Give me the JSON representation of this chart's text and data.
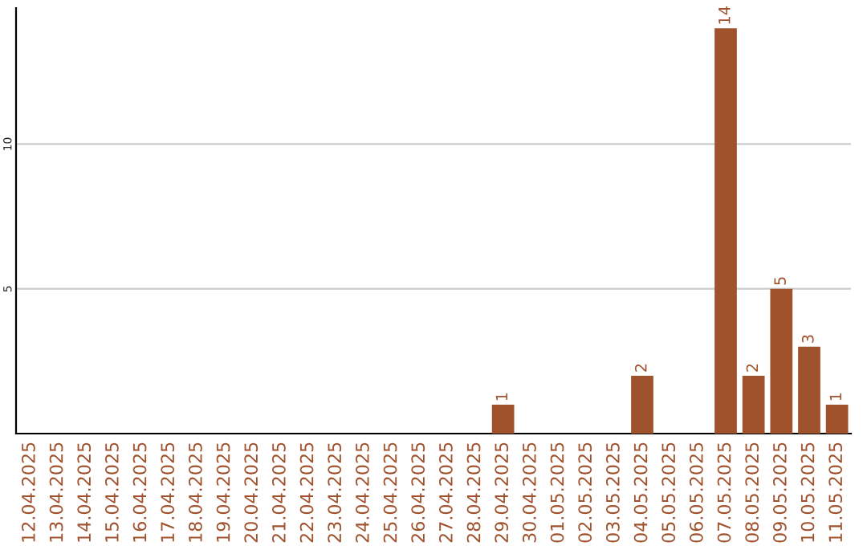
{
  "chart_data": {
    "type": "bar",
    "categories": [
      "12.04.2025",
      "13.04.2025",
      "14.04.2025",
      "15.04.2025",
      "16.04.2025",
      "17.04.2025",
      "18.04.2025",
      "19.04.2025",
      "20.04.2025",
      "21.04.2025",
      "22.04.2025",
      "23.04.2025",
      "24.04.2025",
      "25.04.2025",
      "26.04.2025",
      "27.04.2025",
      "28.04.2025",
      "29.04.2025",
      "30.04.2025",
      "01.05.2025",
      "02.05.2025",
      "03.05.2025",
      "04.05.2025",
      "05.05.2025",
      "06.05.2025",
      "07.05.2025",
      "08.05.2025",
      "09.05.2025",
      "10.05.2025",
      "11.05.2025"
    ],
    "values": [
      0,
      0,
      0,
      0,
      0,
      0,
      0,
      0,
      0,
      0,
      0,
      0,
      0,
      0,
      0,
      0,
      0,
      1,
      0,
      0,
      0,
      0,
      2,
      0,
      0,
      14,
      2,
      5,
      3,
      1
    ],
    "value_labels": [
      null,
      null,
      null,
      null,
      null,
      null,
      null,
      null,
      null,
      null,
      null,
      null,
      null,
      null,
      null,
      null,
      null,
      "1",
      null,
      null,
      null,
      null,
      "2",
      null,
      null,
      "14",
      "2",
      "5",
      "3",
      "1"
    ],
    "color": "#a0522d",
    "ylim": [
      0,
      14.7
    ],
    "yticks": [
      5,
      10
    ],
    "grid": "y"
  }
}
